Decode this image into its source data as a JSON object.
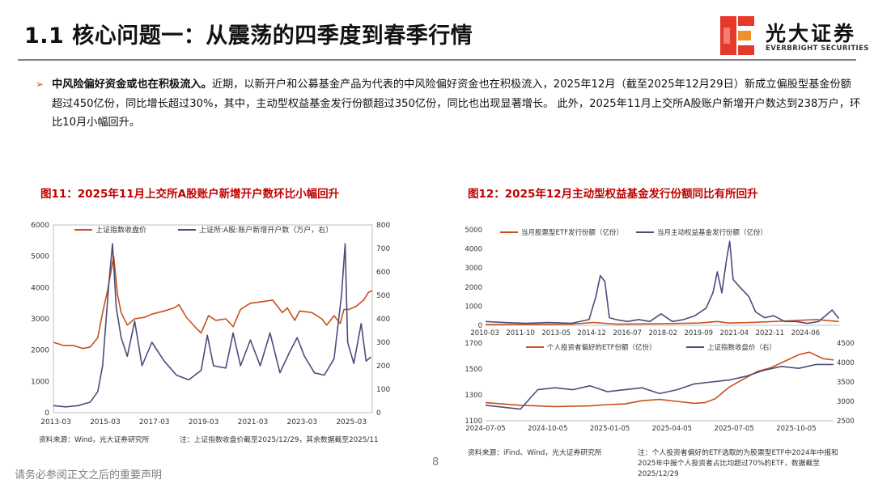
{
  "header": {
    "title": "1.1 核心问题一：从震荡的四季度到春季行情",
    "logo_cn": "光大证券",
    "logo_en": "EVERBRIGHT SECURITIES"
  },
  "bullet": {
    "lead": "中风险偏好资金或也在积极流入。",
    "body": "近期，以新开户和公募基金产品为代表的中风险偏好资金也在积极流入，2025年12月（截至2025年12月29日）新成立偏股型基金份额超过450亿份，同比增长超过30%，其中，主动型权益基金发行份额超过350亿份，同比也出现显著增长。 此外，2025年11月上交所A股账户新增开户数达到238万户，环比10月小幅回升。"
  },
  "figures": {
    "fig11_title": "图11：2025年11月上交所A股账户新增开户数环比小幅回升",
    "fig12_title": "图12：2025年12月主动型权益基金发行份额同比有所回升",
    "fig11_source": "资料来源：Wind，光大证券研究所",
    "fig11_note": "注：上证指数收盘价截至2025/12/29，其余数据截至2025/11",
    "fig12_source": "资料来源：iFind、Wind，光大证券研究所",
    "fig12_note": "注：个人投资者偏好的ETF选取的为股票型ETF中2024年中报和2025年中报个人投资者占比均超过70%的ETF，数据截至2025/12/29"
  },
  "footer": {
    "disclaimer": "请务必参阅正文之后的重要声明",
    "page": "8"
  },
  "chart_data": [
    {
      "type": "line",
      "title": "图11：2025年11月上交所A股账户新增开户数环比小幅回升",
      "x_ticks": [
        "2013-03",
        "2015-03",
        "2017-03",
        "2019-03",
        "2021-03",
        "2023-03",
        "2025-03"
      ],
      "y_left_ticks": [
        0,
        1000,
        2000,
        3000,
        4000,
        5000,
        6000
      ],
      "y_right_ticks": [
        0,
        100,
        200,
        300,
        400,
        500,
        600,
        700,
        800
      ],
      "ylim_left": [
        0,
        6000
      ],
      "ylim_right": [
        0,
        800
      ],
      "legend_position": "top",
      "series": [
        {
          "name": "上证指数收盘价",
          "axis": "left",
          "color": "#c9501c",
          "points": [
            [
              2013.0,
              2250
            ],
            [
              2013.4,
              2150
            ],
            [
              2013.8,
              2150
            ],
            [
              2014.2,
              2050
            ],
            [
              2014.5,
              2100
            ],
            [
              2014.8,
              2400
            ],
            [
              2015.0,
              3200
            ],
            [
              2015.2,
              3900
            ],
            [
              2015.45,
              5000
            ],
            [
              2015.6,
              3800
            ],
            [
              2015.75,
              3200
            ],
            [
              2016.0,
              2800
            ],
            [
              2016.3,
              3000
            ],
            [
              2016.7,
              3050
            ],
            [
              2017.0,
              3150
            ],
            [
              2017.5,
              3250
            ],
            [
              2017.9,
              3350
            ],
            [
              2018.1,
              3450
            ],
            [
              2018.4,
              3050
            ],
            [
              2018.8,
              2700
            ],
            [
              2019.0,
              2550
            ],
            [
              2019.3,
              3100
            ],
            [
              2019.6,
              2950
            ],
            [
              2020.0,
              3000
            ],
            [
              2020.3,
              2750
            ],
            [
              2020.6,
              3300
            ],
            [
              2021.0,
              3500
            ],
            [
              2021.5,
              3550
            ],
            [
              2021.9,
              3600
            ],
            [
              2022.3,
              3200
            ],
            [
              2022.5,
              3350
            ],
            [
              2022.8,
              2950
            ],
            [
              2023.0,
              3250
            ],
            [
              2023.5,
              3200
            ],
            [
              2023.9,
              3000
            ],
            [
              2024.1,
              2800
            ],
            [
              2024.4,
              3100
            ],
            [
              2024.65,
              2850
            ],
            [
              2024.8,
              3300
            ],
            [
              2025.0,
              3300
            ],
            [
              2025.3,
              3400
            ],
            [
              2025.6,
              3600
            ],
            [
              2025.8,
              3850
            ],
            [
              2025.95,
              3900
            ]
          ]
        },
        {
          "name": "上证所:A股:账户新增开户数（万户，右）",
          "axis": "right",
          "color": "#4b4c7c",
          "points": [
            [
              2013.0,
              30
            ],
            [
              2013.5,
              25
            ],
            [
              2014.0,
              30
            ],
            [
              2014.5,
              45
            ],
            [
              2014.8,
              90
            ],
            [
              2015.0,
              200
            ],
            [
              2015.25,
              550
            ],
            [
              2015.4,
              720
            ],
            [
              2015.55,
              450
            ],
            [
              2015.75,
              320
            ],
            [
              2016.0,
              240
            ],
            [
              2016.3,
              390
            ],
            [
              2016.6,
              200
            ],
            [
              2017.0,
              300
            ],
            [
              2017.5,
              220
            ],
            [
              2018.0,
              160
            ],
            [
              2018.5,
              140
            ],
            [
              2019.0,
              180
            ],
            [
              2019.25,
              330
            ],
            [
              2019.5,
              200
            ],
            [
              2020.0,
              190
            ],
            [
              2020.3,
              340
            ],
            [
              2020.6,
              200
            ],
            [
              2021.0,
              310
            ],
            [
              2021.4,
              200
            ],
            [
              2021.8,
              340
            ],
            [
              2022.2,
              170
            ],
            [
              2022.6,
              260
            ],
            [
              2022.9,
              320
            ],
            [
              2023.2,
              240
            ],
            [
              2023.6,
              170
            ],
            [
              2024.0,
              160
            ],
            [
              2024.4,
              230
            ],
            [
              2024.7,
              500
            ],
            [
              2024.85,
              720
            ],
            [
              2024.95,
              300
            ],
            [
              2025.2,
              210
            ],
            [
              2025.5,
              380
            ],
            [
              2025.7,
              220
            ],
            [
              2025.9,
              238
            ]
          ]
        }
      ]
    },
    {
      "type": "line",
      "title": "图12：2025年12月主动型权益基金发行份额同比有所回升（上）",
      "x_ticks": [
        "2010-03",
        "2011-10",
        "2013-05",
        "2014-12",
        "2016-07",
        "2018-02",
        "2019-09",
        "2021-04",
        "2022-11",
        "2024-06"
      ],
      "y_ticks": [
        0,
        1000,
        2000,
        3000,
        4000,
        5000
      ],
      "ylim": [
        0,
        5000
      ],
      "legend_position": "top",
      "series": [
        {
          "name": "当月股票型ETF发行份额（亿份）",
          "color": "#c9501c",
          "points": [
            [
              2010.2,
              40
            ],
            [
              2012.0,
              50
            ],
            [
              2014.0,
              60
            ],
            [
              2015.0,
              150
            ],
            [
              2016.0,
              60
            ],
            [
              2018.0,
              80
            ],
            [
              2019.7,
              120
            ],
            [
              2020.5,
              200
            ],
            [
              2021.0,
              120
            ],
            [
              2022.0,
              150
            ],
            [
              2023.0,
              200
            ],
            [
              2024.0,
              250
            ],
            [
              2024.9,
              300
            ],
            [
              2025.9,
              200
            ]
          ]
        },
        {
          "name": "当月主动权益基金发行份额（亿份）",
          "color": "#4b4c7c",
          "points": [
            [
              2010.2,
              200
            ],
            [
              2011.0,
              150
            ],
            [
              2012.0,
              100
            ],
            [
              2013.0,
              150
            ],
            [
              2014.0,
              100
            ],
            [
              2014.8,
              300
            ],
            [
              2015.1,
              1500
            ],
            [
              2015.3,
              2600
            ],
            [
              2015.5,
              2300
            ],
            [
              2015.7,
              400
            ],
            [
              2016.0,
              300
            ],
            [
              2016.5,
              200
            ],
            [
              2017.0,
              300
            ],
            [
              2017.5,
              200
            ],
            [
              2018.0,
              600
            ],
            [
              2018.5,
              200
            ],
            [
              2019.0,
              300
            ],
            [
              2019.5,
              500
            ],
            [
              2020.0,
              900
            ],
            [
              2020.3,
              1700
            ],
            [
              2020.5,
              2800
            ],
            [
              2020.7,
              1700
            ],
            [
              2020.9,
              3400
            ],
            [
              2021.05,
              4400
            ],
            [
              2021.2,
              2400
            ],
            [
              2021.5,
              2000
            ],
            [
              2021.9,
              1500
            ],
            [
              2022.2,
              700
            ],
            [
              2022.6,
              400
            ],
            [
              2023.0,
              500
            ],
            [
              2023.5,
              200
            ],
            [
              2024.0,
              200
            ],
            [
              2024.5,
              100
            ],
            [
              2025.0,
              200
            ],
            [
              2025.6,
              800
            ],
            [
              2025.9,
              350
            ]
          ]
        }
      ]
    },
    {
      "type": "line",
      "title": "图12：2025年12月主动型权益基金发行份额同比有所回升（下）",
      "x_ticks": [
        "2024-07-05",
        "2024-10-05",
        "2025-01-05",
        "2025-04-05",
        "2025-07-05",
        "2025-10-05"
      ],
      "y_left_ticks": [
        1100,
        1300,
        1500,
        1700
      ],
      "y_right_ticks": [
        2500,
        3000,
        3500,
        4000,
        4500
      ],
      "ylim_left": [
        1100,
        1700
      ],
      "ylim_right": [
        2500,
        4500
      ],
      "legend_position": "top",
      "series": [
        {
          "name": "个人投资者偏好的ETF份额（亿份）",
          "axis": "left",
          "color": "#c9501c",
          "points": [
            [
              0.0,
              1240
            ],
            [
              0.05,
              1230
            ],
            [
              0.1,
              1220
            ],
            [
              0.2,
              1210
            ],
            [
              0.3,
              1215
            ],
            [
              0.35,
              1225
            ],
            [
              0.4,
              1230
            ],
            [
              0.45,
              1255
            ],
            [
              0.5,
              1265
            ],
            [
              0.55,
              1250
            ],
            [
              0.6,
              1235
            ],
            [
              0.63,
              1240
            ],
            [
              0.66,
              1270
            ],
            [
              0.7,
              1360
            ],
            [
              0.74,
              1420
            ],
            [
              0.78,
              1480
            ],
            [
              0.82,
              1510
            ],
            [
              0.86,
              1560
            ],
            [
              0.9,
              1610
            ],
            [
              0.93,
              1630
            ],
            [
              0.97,
              1580
            ],
            [
              1.0,
              1570
            ]
          ]
        },
        {
          "name": "上证指数收盘价（右）",
          "axis": "right",
          "color": "#4b4c7c",
          "points": [
            [
              0.0,
              2900
            ],
            [
              0.05,
              2850
            ],
            [
              0.1,
              2800
            ],
            [
              0.15,
              3300
            ],
            [
              0.2,
              3350
            ],
            [
              0.25,
              3300
            ],
            [
              0.3,
              3400
            ],
            [
              0.35,
              3250
            ],
            [
              0.4,
              3300
            ],
            [
              0.45,
              3350
            ],
            [
              0.5,
              3200
            ],
            [
              0.55,
              3300
            ],
            [
              0.6,
              3450
            ],
            [
              0.65,
              3500
            ],
            [
              0.7,
              3550
            ],
            [
              0.75,
              3650
            ],
            [
              0.8,
              3800
            ],
            [
              0.85,
              3900
            ],
            [
              0.9,
              3850
            ],
            [
              0.95,
              3950
            ],
            [
              1.0,
              3950
            ]
          ]
        }
      ]
    }
  ]
}
